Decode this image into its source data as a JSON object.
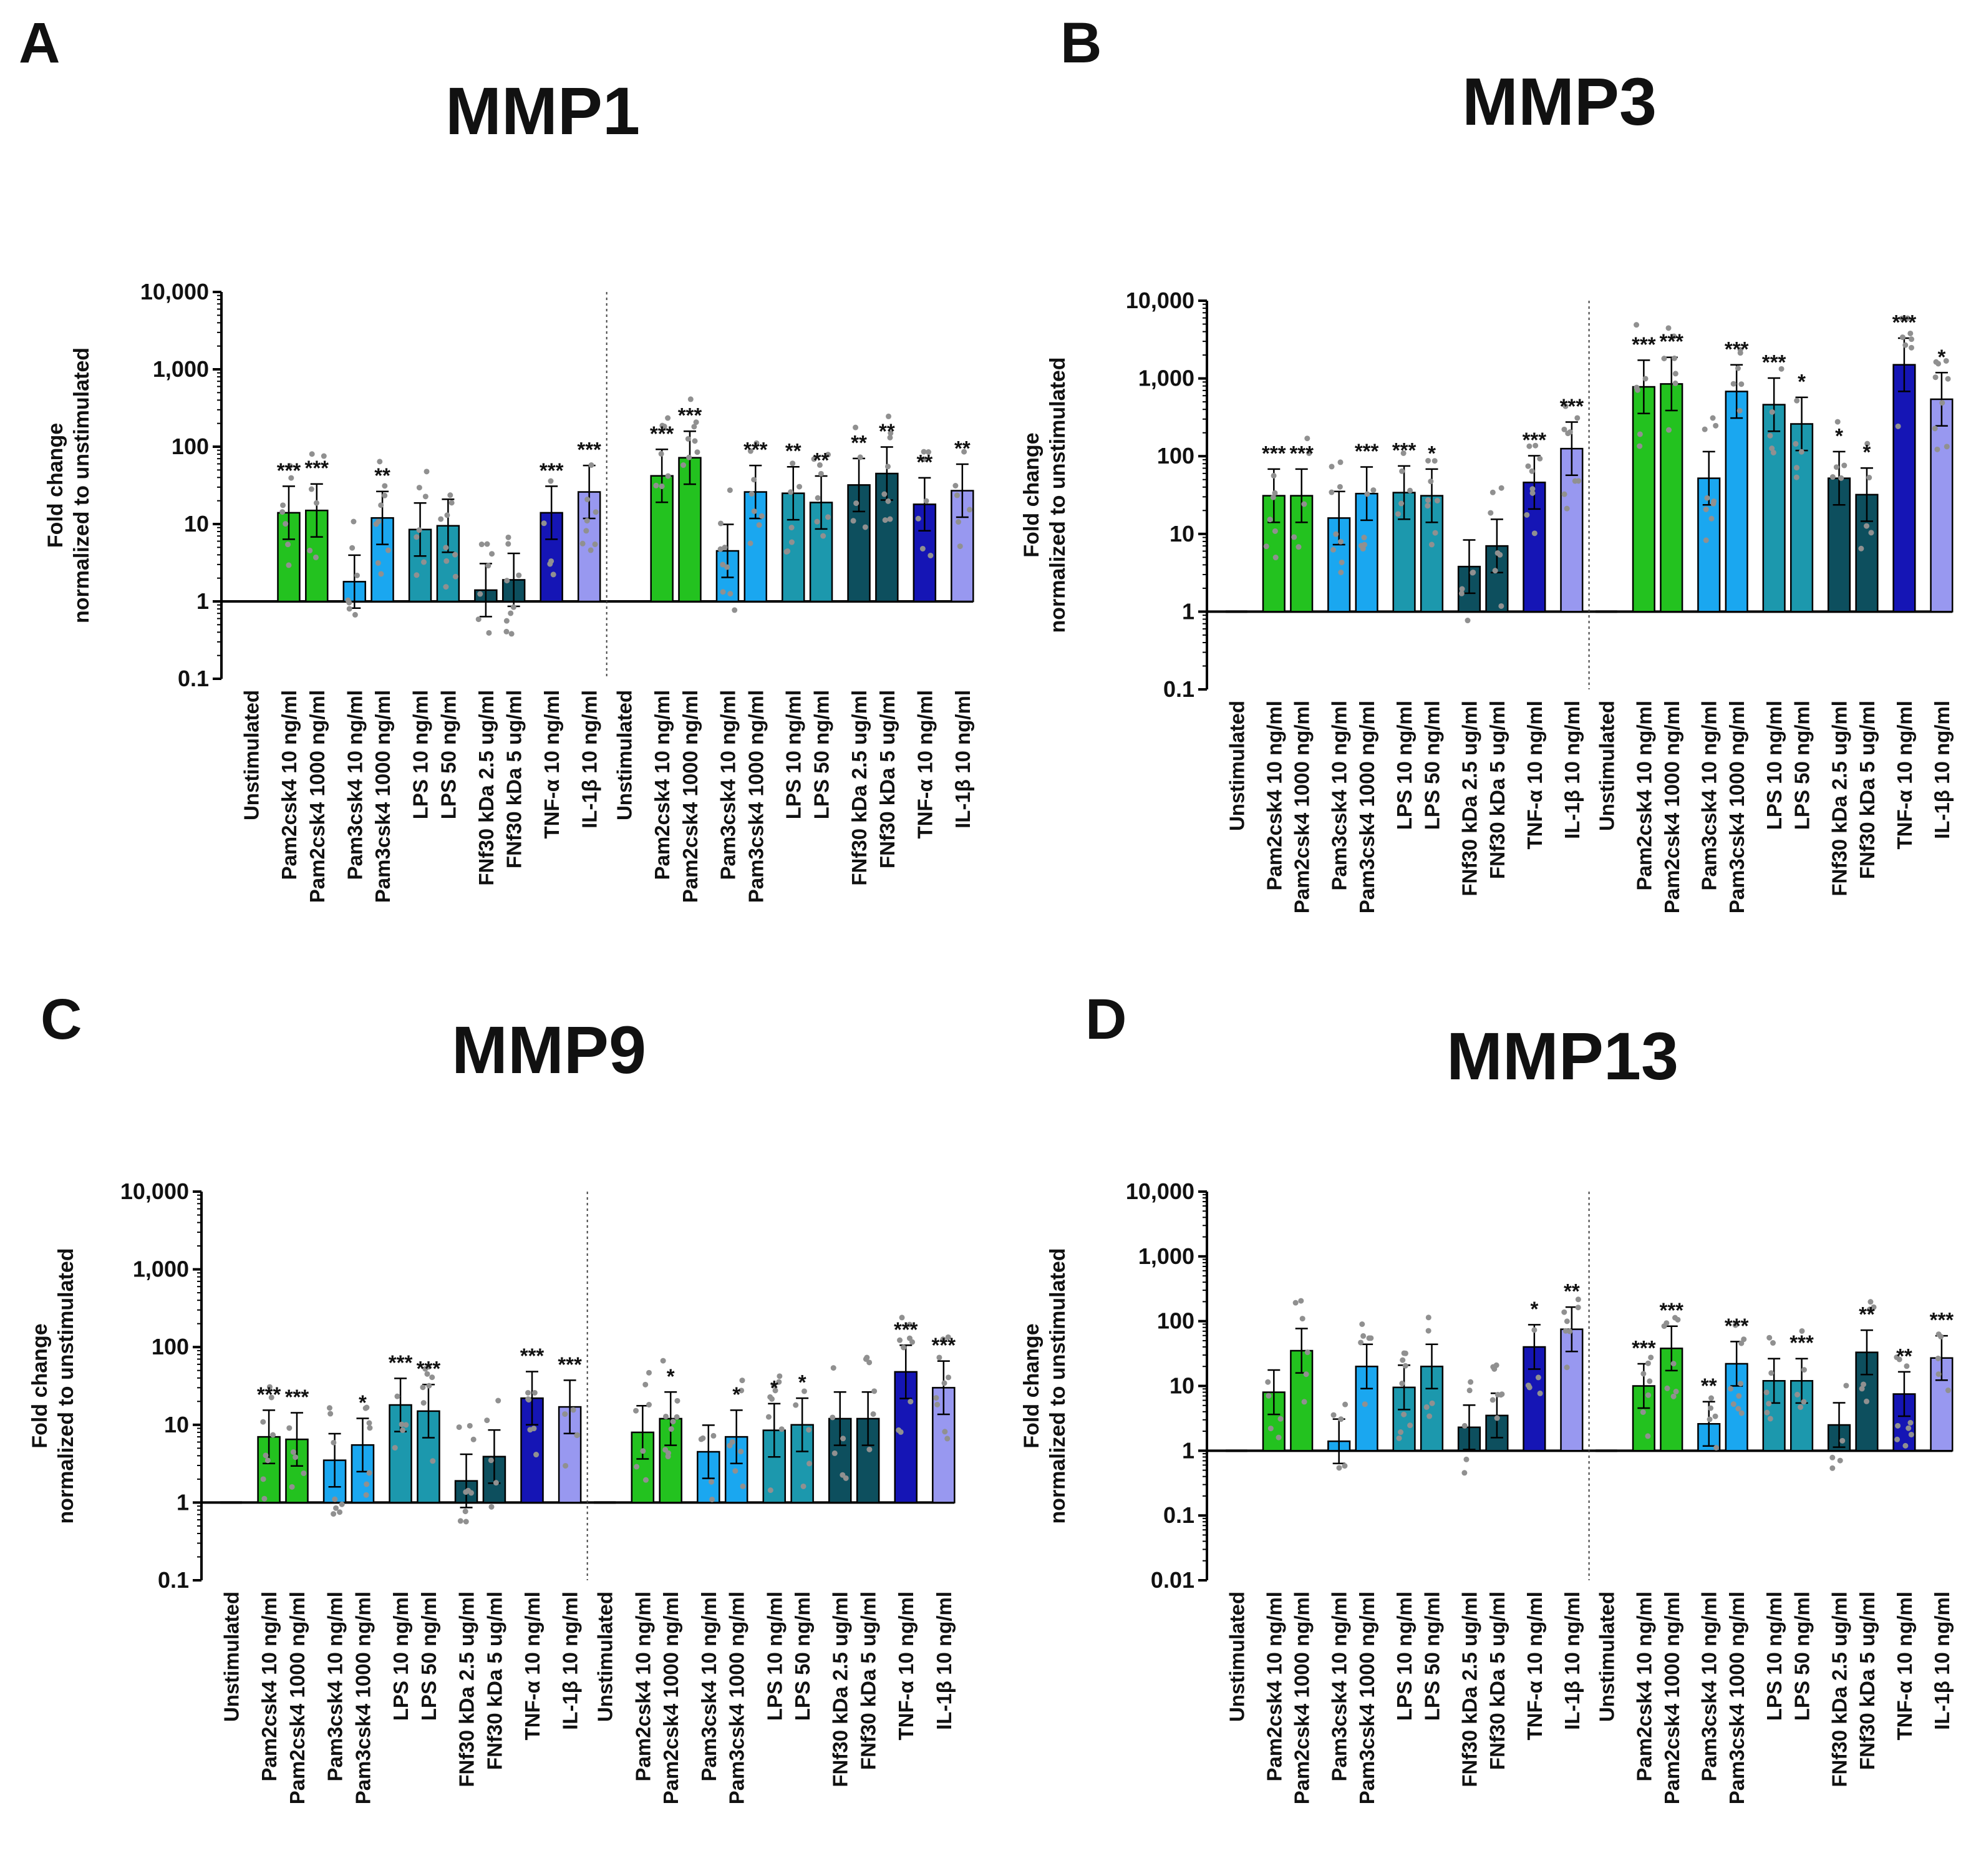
{
  "chart_data": [
    {
      "type": "bar",
      "panel": "A",
      "title": "MMP1",
      "ylabel": "Fold change normalized to unstimulated",
      "yscale": "log",
      "yticks": [
        0.1,
        1,
        10,
        100,
        1000,
        10000
      ],
      "ytick_labels": [
        "0.1",
        "1",
        "10",
        "100",
        "1,000",
        "10,000"
      ],
      "baseline": 1,
      "categories": [
        "Unstimulated",
        "Pam2csk4 10 ng/ml",
        "Pam2csk4 1000 ng/ml",
        "Pam3csk4 10 ng/ml",
        "Pam3csk4 1000 ng/ml",
        "LPS 10 ng/ml",
        "LPS 50 ng/ml",
        "FNf30 kDa 2.5 ug/ml",
        "FNf30 kDa 5 ug/ml",
        "TNF-α 10 ng/ml",
        "IL-1β 10 ng/ml",
        "Unstimulated",
        "Pam2csk4 10 ng/ml",
        "Pam2csk4 1000 ng/ml",
        "Pam3csk4 10 ng/ml",
        "Pam3csk4 1000 ng/ml",
        "LPS 10 ng/ml",
        "LPS 50 ng/ml",
        "FNf30 kDa 2.5 ug/ml",
        "FNf30 kDa 5 ug/ml",
        "TNF-α 10 ng/ml",
        "IL-1β 10 ng/ml"
      ],
      "values": [
        1,
        14,
        15,
        1.8,
        12,
        8.5,
        9.5,
        1.4,
        1.9,
        14,
        26,
        1,
        42,
        72,
        4.5,
        26,
        25,
        19,
        32,
        45,
        18,
        27
      ],
      "significance": [
        "",
        "***",
        "***",
        "",
        "**",
        "",
        "",
        "",
        "",
        "***",
        "***",
        "",
        "***",
        "***",
        "",
        "***",
        "**",
        "**",
        "**",
        "**",
        "**",
        "**"
      ]
    },
    {
      "type": "bar",
      "panel": "B",
      "title": "MMP3",
      "ylabel": "Fold change normalized to unstimulated",
      "yscale": "log",
      "yticks": [
        0.1,
        1,
        10,
        100,
        1000,
        10000
      ],
      "ytick_labels": [
        "0.1",
        "1",
        "10",
        "100",
        "1,000",
        "10,000"
      ],
      "baseline": 1,
      "categories": [
        "Unstimulated",
        "Pam2csk4 10 ng/ml",
        "Pam2csk4 1000 ng/ml",
        "Pam3csk4 10 ng/ml",
        "Pam3csk4 1000 ng/ml",
        "LPS 10 ng/ml",
        "LPS 50 ng/ml",
        "FNf30 kDa 2.5 ug/ml",
        "FNf30 kDa 5 ug/ml",
        "TNF-α 10 ng/ml",
        "IL-1β 10 ng/ml",
        "Unstimulated",
        "Pam2csk4 10 ng/ml",
        "Pam2csk4 1000 ng/ml",
        "Pam3csk4 10 ng/ml",
        "Pam3csk4 1000 ng/ml",
        "LPS 10 ng/ml",
        "LPS 50 ng/ml",
        "FNf30 kDa 2.5 ug/ml",
        "FNf30 kDa 5 ug/ml",
        "TNF-α 10 ng/ml",
        "IL-1β 10 ng/ml"
      ],
      "values": [
        1,
        31,
        31,
        16,
        33,
        34,
        31,
        3.8,
        7,
        46,
        125,
        1,
        780,
        850,
        52,
        680,
        460,
        260,
        52,
        32,
        1500,
        540
      ],
      "significance": [
        "",
        "***",
        "***",
        "",
        "***",
        "***",
        "*",
        "",
        "",
        "***",
        "***",
        "",
        "***",
        "***",
        "",
        "***",
        "***",
        "*",
        "*",
        "*",
        "***",
        "*"
      ]
    },
    {
      "type": "bar",
      "panel": "C",
      "title": "MMP9",
      "ylabel": "Fold change normalized to unstimulated",
      "yscale": "log",
      "yticks": [
        0.1,
        1,
        10,
        100,
        1000,
        10000
      ],
      "ytick_labels": [
        "0.1",
        "1",
        "10",
        "100",
        "1,000",
        "10,000"
      ],
      "baseline": 1,
      "categories": [
        "Unstimulated",
        "Pam2csk4 10 ng/ml",
        "Pam2csk4 1000 ng/ml",
        "Pam3csk4 10 ng/ml",
        "Pam3csk4 1000 ng/ml",
        "LPS 10 ng/ml",
        "LPS 50 ng/ml",
        "FNf30 kDa 2.5 ug/ml",
        "FNf30 kDa 5 ug/ml",
        "TNF-α 10 ng/ml",
        "IL-1β 10 ng/ml",
        "Unstimulated",
        "Pam2csk4 10 ng/ml",
        "Pam2csk4 1000 ng/ml",
        "Pam3csk4 10 ng/ml",
        "Pam3csk4 1000 ng/ml",
        "LPS 10 ng/ml",
        "LPS 50 ng/ml",
        "FNf30 kDa 2.5 ug/ml",
        "FNf30 kDa 5 ug/ml",
        "TNF-α 10 ng/ml",
        "IL-1β 10 ng/ml"
      ],
      "values": [
        1,
        7,
        6.5,
        3.5,
        5.5,
        18,
        15,
        1.9,
        3.9,
        22,
        17,
        1,
        8,
        12,
        4.5,
        7,
        8.5,
        10,
        12,
        12,
        48,
        30
      ],
      "significance": [
        "",
        "***",
        "***",
        "",
        "*",
        "***",
        "***",
        "",
        "",
        "***",
        "***",
        "",
        "",
        "*",
        "",
        "*",
        "*",
        "*",
        "",
        "",
        "***",
        "***"
      ]
    },
    {
      "type": "bar",
      "panel": "D",
      "title": "MMP13",
      "ylabel": "Fold change normalized to unstimulated",
      "yscale": "log",
      "yticks": [
        0.01,
        0.1,
        1,
        10,
        100,
        1000,
        10000
      ],
      "ytick_labels": [
        "0.01",
        "0.1",
        "1",
        "10",
        "100",
        "1,000",
        "10,000"
      ],
      "baseline": 1,
      "categories": [
        "Unstimulated",
        "Pam2csk4 10 ng/ml",
        "Pam2csk4 1000 ng/ml",
        "Pam3csk4 10 ng/ml",
        "Pam3csk4 1000 ng/ml",
        "LPS 10 ng/ml",
        "LPS 50 ng/ml",
        "FNf30 kDa 2.5 ug/ml",
        "FNf30 kDa 5 ug/ml",
        "TNF-α 10 ng/ml",
        "IL-1β 10 ng/ml",
        "Unstimulated",
        "Pam2csk4 10 ng/ml",
        "Pam2csk4 1000 ng/ml",
        "Pam3csk4 10 ng/ml",
        "Pam3csk4 1000 ng/ml",
        "LPS 10 ng/ml",
        "LPS 50 ng/ml",
        "FNf30 kDa 2.5 ug/ml",
        "FNf30 kDa 5 ug/ml",
        "TNF-α 10 ng/ml",
        "IL-1β 10 ng/ml"
      ],
      "values": [
        1,
        8,
        35,
        1.4,
        20,
        9.5,
        20,
        2.3,
        3.5,
        40,
        75,
        1,
        10,
        38,
        2.6,
        22,
        12,
        12,
        2.5,
        33,
        7.5,
        27
      ],
      "significance": [
        "",
        "",
        "",
        "",
        "",
        "",
        "",
        "",
        "",
        "*",
        "**",
        "",
        "***",
        "***",
        "**",
        "***",
        "",
        "***",
        "",
        "**",
        "**",
        "***"
      ]
    }
  ],
  "colors": {
    "unstimulated": "#000000",
    "pam2csk4": "#23c21f",
    "pam3csk4": "#1aa7f0",
    "lps": "#1c98ad",
    "fnf30": "#0d4f5e",
    "tnf": "#1515b5",
    "il1b": "#9898f0",
    "point": "#909090"
  }
}
